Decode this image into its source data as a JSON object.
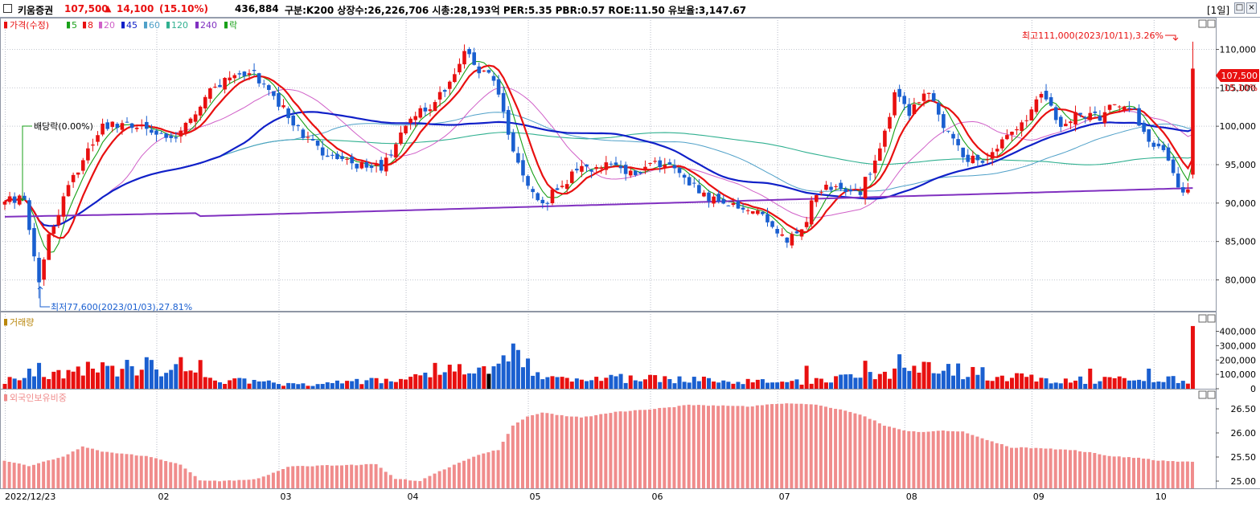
{
  "header": {
    "name": "키움증권",
    "price": "107,500",
    "change_arrow": "▲",
    "change": "14,100",
    "change_pct": "(15.10%)",
    "volume": "436,884",
    "info": "구분:K200 상장수:26,226,706 시총:28,193억 PER:5.35 PBR:0.57 ROE:11.50 유보율:3,147.67",
    "period_button": "[1일]"
  },
  "colors": {
    "up": "#e81010",
    "down": "#1a5fd0",
    "ma5": "#18a018",
    "ma8": "#e81010",
    "ma20": "#d060c8",
    "ma45": "#1020c8",
    "ma60": "#4fa0c8",
    "ma120": "#30b090",
    "ma240": "#8030c0",
    "foreign": "#f08c8c"
  },
  "legend": {
    "price": "가격(수정)",
    "items": [
      {
        "label": "5",
        "color": "#18a018"
      },
      {
        "label": "8",
        "color": "#e81010"
      },
      {
        "label": "20",
        "color": "#d060c8"
      },
      {
        "label": "45",
        "color": "#1020c8"
      },
      {
        "label": "60",
        "color": "#4fa0c8"
      },
      {
        "label": "120",
        "color": "#30b090"
      },
      {
        "label": "240",
        "color": "#8030c0"
      },
      {
        "label": "락",
        "color": "#18a018"
      }
    ],
    "volume": "거래량",
    "foreign": "외국인보유비중"
  },
  "annotations": {
    "high": "최고111,000(2023/10/11),3.26%",
    "low": "최저77,600(2023/01/03),27.81%",
    "dividend": "배당락(0.00%)",
    "current_price": "107,500",
    "current_pct": "15.10%"
  },
  "chart_data": {
    "type": "candlestick",
    "x_axis": {
      "start_label": "2022/12/23",
      "month_labels": [
        "02",
        "03",
        "04",
        "05",
        "06",
        "07",
        "08",
        "09",
        "10"
      ]
    },
    "price_axis": {
      "ticks": [
        "110,000",
        "105,000",
        "100,000",
        "95,000",
        "90,000",
        "85,000",
        "80,000"
      ],
      "range": [
        76500,
        113500
      ]
    },
    "volume_axis": {
      "ticks": [
        "400,000",
        "300,000",
        "200,000",
        "100,000",
        "0"
      ],
      "range": [
        0,
        470000
      ]
    },
    "foreign_axis": {
      "ticks": [
        "26.50",
        "26.00",
        "25.50",
        "25.00"
      ],
      "range": [
        24.85,
        26.75
      ]
    },
    "last_bar": {
      "open": 93700,
      "high": 111000,
      "low": 93200,
      "close": 107500,
      "volume": 436884
    },
    "high_point": {
      "value": 111000,
      "date": "2023/10/11",
      "pct": "3.26%"
    },
    "low_point": {
      "value": 77600,
      "date": "2023/01/03",
      "pct": "27.81%"
    },
    "close_keypoints": [
      [
        0,
        90200
      ],
      [
        4,
        90800
      ],
      [
        7,
        79500
      ],
      [
        9,
        86000
      ],
      [
        12,
        90600
      ],
      [
        16,
        95600
      ],
      [
        20,
        100000
      ],
      [
        25,
        100700
      ],
      [
        30,
        99200
      ],
      [
        35,
        98800
      ],
      [
        40,
        102900
      ],
      [
        45,
        106400
      ],
      [
        50,
        107300
      ],
      [
        55,
        103900
      ],
      [
        60,
        99800
      ],
      [
        65,
        96200
      ],
      [
        70,
        95400
      ],
      [
        73,
        94800
      ],
      [
        77,
        94600
      ],
      [
        82,
        99900
      ],
      [
        86,
        102300
      ],
      [
        90,
        104300
      ],
      [
        94,
        110000
      ],
      [
        97,
        107200
      ],
      [
        100,
        106500
      ],
      [
        104,
        97100
      ],
      [
        108,
        90800
      ],
      [
        110,
        89400
      ],
      [
        113,
        92100
      ],
      [
        118,
        94500
      ],
      [
        124,
        95100
      ],
      [
        128,
        94000
      ],
      [
        134,
        95200
      ],
      [
        139,
        93500
      ],
      [
        144,
        90500
      ],
      [
        148,
        89800
      ],
      [
        154,
        88500
      ],
      [
        160,
        85300
      ],
      [
        163,
        86400
      ],
      [
        166,
        91500
      ],
      [
        170,
        92300
      ],
      [
        175,
        91600
      ],
      [
        179,
        97000
      ],
      [
        182,
        104000
      ],
      [
        185,
        101800
      ],
      [
        189,
        104500
      ],
      [
        193,
        99000
      ],
      [
        196,
        96000
      ],
      [
        200,
        95600
      ],
      [
        205,
        98900
      ],
      [
        209,
        101400
      ],
      [
        212,
        104000
      ],
      [
        216,
        100500
      ],
      [
        220,
        101500
      ],
      [
        224,
        101300
      ],
      [
        228,
        103000
      ],
      [
        231,
        102000
      ],
      [
        234,
        97700
      ],
      [
        238,
        96000
      ],
      [
        241,
        90800
      ],
      [
        243,
        93300
      ]
    ],
    "volume_keypoints": [
      [
        0,
        60000
      ],
      [
        10,
        110000
      ],
      [
        30,
        170000
      ],
      [
        40,
        70000
      ],
      [
        60,
        30000
      ],
      [
        80,
        60000
      ],
      [
        88,
        120000
      ],
      [
        100,
        120000
      ],
      [
        105,
        230000
      ],
      [
        110,
        80000
      ],
      [
        130,
        70000
      ],
      [
        150,
        60000
      ],
      [
        163,
        45000
      ],
      [
        170,
        70000
      ],
      [
        180,
        90000
      ],
      [
        186,
        170000
      ],
      [
        200,
        100000
      ],
      [
        215,
        55000
      ],
      [
        230,
        70000
      ],
      [
        242,
        60000
      ]
    ],
    "volume_spikes": [
      [
        5,
        140000
      ],
      [
        7,
        180000
      ],
      [
        18,
        140000
      ],
      [
        22,
        160000
      ],
      [
        36,
        220000
      ],
      [
        40,
        200000
      ],
      [
        88,
        180000
      ],
      [
        103,
        190000
      ],
      [
        104,
        315000
      ],
      [
        105,
        270000
      ],
      [
        106,
        150000
      ],
      [
        164,
        160000
      ],
      [
        176,
        195000
      ],
      [
        183,
        240000
      ],
      [
        186,
        160000
      ],
      [
        200,
        150000
      ],
      [
        222,
        140000
      ],
      [
        234,
        140000
      ]
    ],
    "foreign_keypoints": [
      [
        0,
        25.42
      ],
      [
        5,
        25.32
      ],
      [
        12,
        25.5
      ],
      [
        16,
        25.72
      ],
      [
        20,
        25.62
      ],
      [
        30,
        25.5
      ],
      [
        36,
        25.35
      ],
      [
        40,
        25.02
      ],
      [
        45,
        25.0
      ],
      [
        52,
        25.05
      ],
      [
        58,
        25.3
      ],
      [
        64,
        25.32
      ],
      [
        70,
        25.33
      ],
      [
        76,
        25.35
      ],
      [
        80,
        25.05
      ],
      [
        85,
        25.0
      ],
      [
        90,
        25.25
      ],
      [
        97,
        25.55
      ],
      [
        101,
        25.65
      ],
      [
        104,
        26.15
      ],
      [
        107,
        26.35
      ],
      [
        110,
        26.42
      ],
      [
        115,
        26.35
      ],
      [
        118,
        26.32
      ],
      [
        125,
        26.44
      ],
      [
        131,
        26.48
      ],
      [
        136,
        26.53
      ],
      [
        140,
        26.58
      ],
      [
        146,
        26.57
      ],
      [
        152,
        26.55
      ],
      [
        160,
        26.62
      ],
      [
        166,
        26.58
      ],
      [
        172,
        26.46
      ],
      [
        176,
        26.35
      ],
      [
        180,
        26.15
      ],
      [
        184,
        26.05
      ],
      [
        188,
        26.02
      ],
      [
        192,
        26.05
      ],
      [
        196,
        26.03
      ],
      [
        200,
        25.88
      ],
      [
        206,
        25.7
      ],
      [
        212,
        25.68
      ],
      [
        218,
        25.65
      ],
      [
        222,
        25.6
      ],
      [
        226,
        25.52
      ],
      [
        232,
        25.48
      ],
      [
        237,
        25.42
      ],
      [
        243,
        25.4
      ]
    ]
  }
}
